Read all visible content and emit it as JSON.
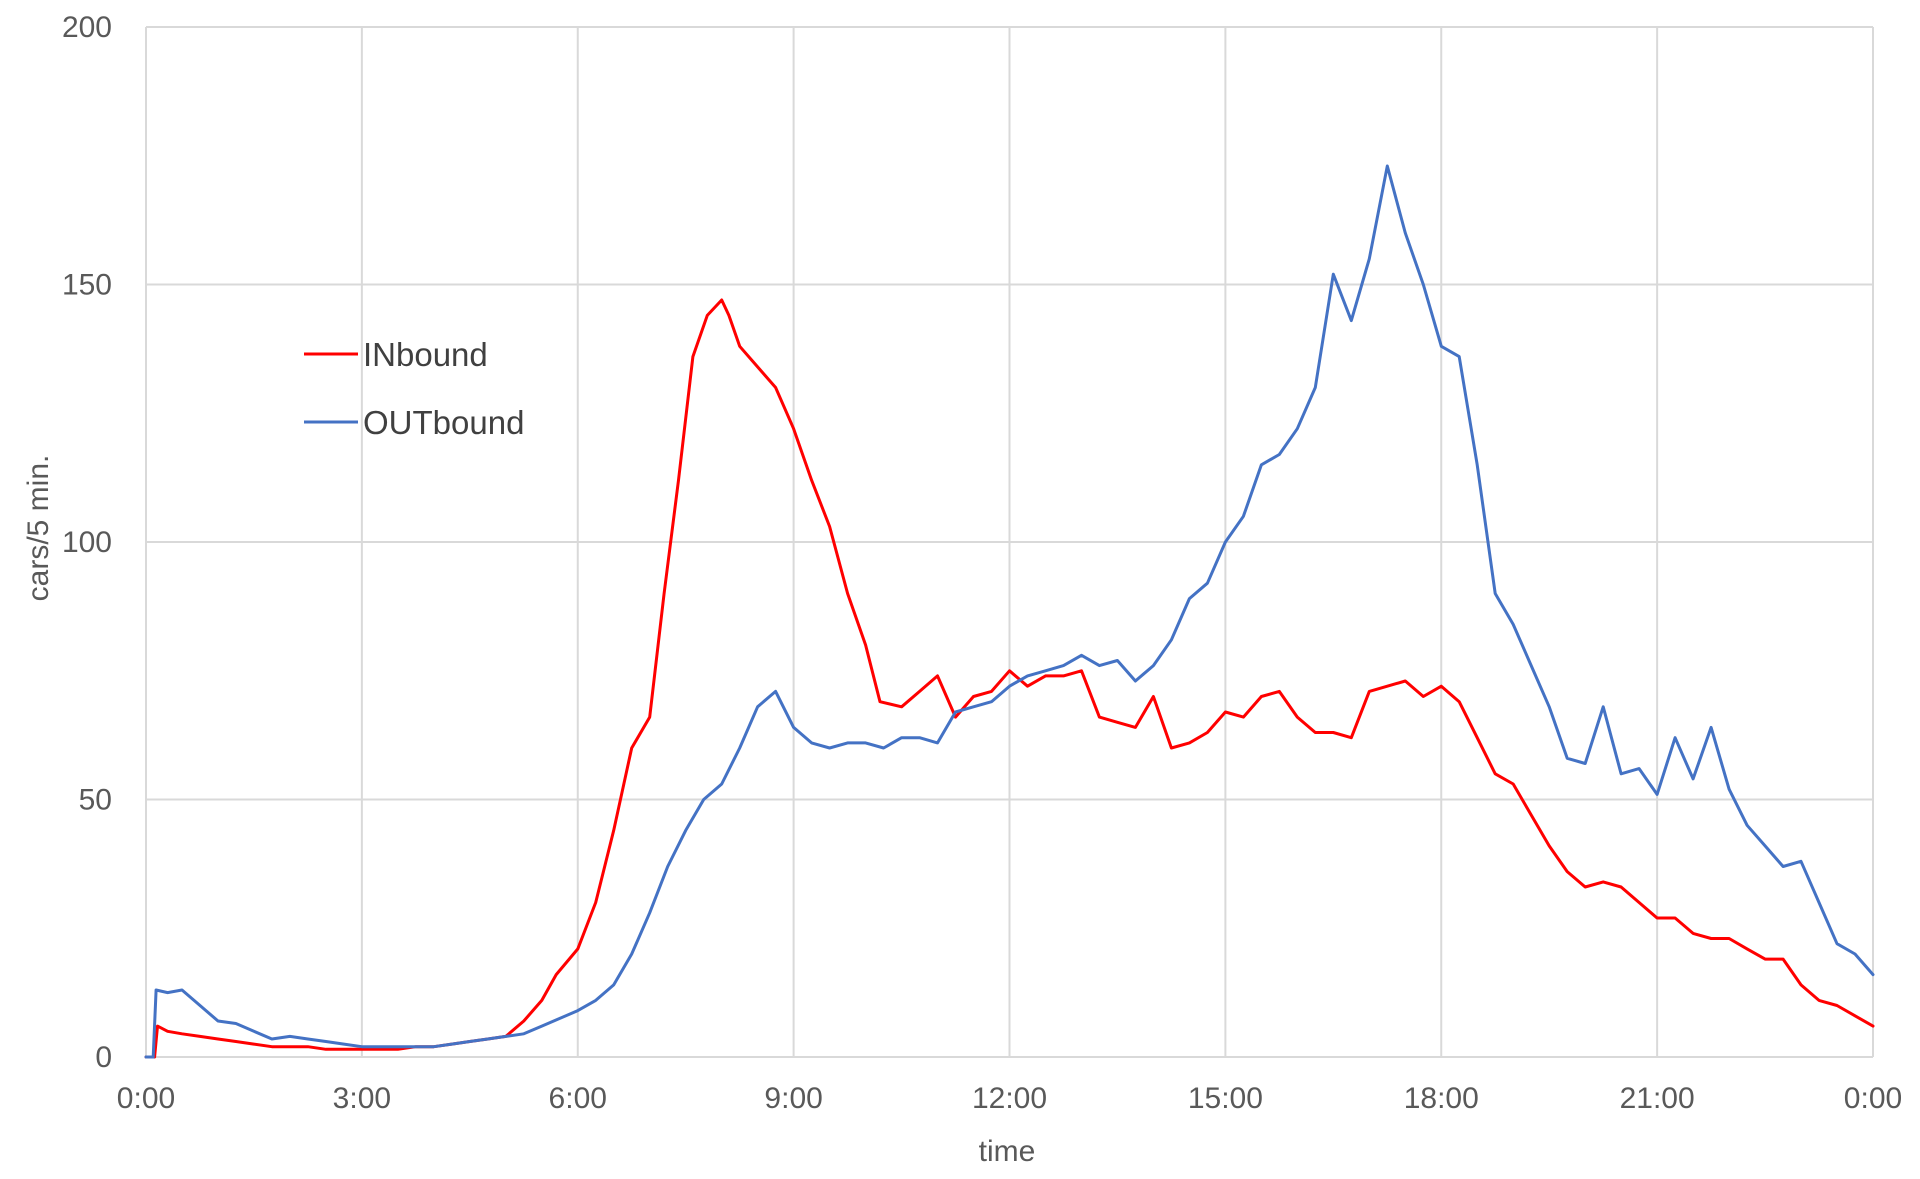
{
  "chart_data": {
    "type": "line",
    "xlabel": "time",
    "ylabel": "cars/5 min.",
    "x_ticks": [
      "0:00",
      "3:00",
      "6:00",
      "9:00",
      "12:00",
      "15:00",
      "18:00",
      "21:00",
      "0:00"
    ],
    "x_range_hours": [
      0,
      24
    ],
    "ylim": [
      0,
      200
    ],
    "y_ticks": [
      0,
      50,
      100,
      150,
      200
    ],
    "grid": true,
    "legend": "upper-left inside plot",
    "series": [
      {
        "name": "INbound",
        "color": "#ff0000",
        "points": [
          [
            0,
            0
          ],
          [
            0.12,
            0
          ],
          [
            0.16,
            6
          ],
          [
            0.3,
            5
          ],
          [
            0.5,
            4.5
          ],
          [
            0.75,
            4
          ],
          [
            1,
            3.5
          ],
          [
            1.25,
            3
          ],
          [
            1.5,
            2.5
          ],
          [
            1.75,
            2
          ],
          [
            2,
            2
          ],
          [
            2.25,
            2
          ],
          [
            2.5,
            1.5
          ],
          [
            2.75,
            1.5
          ],
          [
            3,
            1.5
          ],
          [
            3.25,
            1.5
          ],
          [
            3.5,
            1.5
          ],
          [
            3.75,
            2
          ],
          [
            4,
            2
          ],
          [
            4.25,
            2.5
          ],
          [
            4.5,
            3
          ],
          [
            4.75,
            3.5
          ],
          [
            5,
            4
          ],
          [
            5.25,
            7
          ],
          [
            5.5,
            11
          ],
          [
            5.7,
            16
          ],
          [
            6,
            21
          ],
          [
            6.25,
            30
          ],
          [
            6.5,
            44
          ],
          [
            6.75,
            60
          ],
          [
            7,
            66
          ],
          [
            7.2,
            90
          ],
          [
            7.4,
            112
          ],
          [
            7.6,
            136
          ],
          [
            7.8,
            144
          ],
          [
            8,
            147
          ],
          [
            8.1,
            144
          ],
          [
            8.25,
            138
          ],
          [
            8.5,
            134
          ],
          [
            8.75,
            130
          ],
          [
            9,
            122
          ],
          [
            9.25,
            112
          ],
          [
            9.5,
            103
          ],
          [
            9.75,
            90
          ],
          [
            10,
            80
          ],
          [
            10.2,
            69
          ],
          [
            10.5,
            68
          ],
          [
            10.75,
            71
          ],
          [
            11,
            74
          ],
          [
            11.25,
            66
          ],
          [
            11.5,
            70
          ],
          [
            11.75,
            71
          ],
          [
            12,
            75
          ],
          [
            12.25,
            72
          ],
          [
            12.5,
            74
          ],
          [
            12.75,
            74
          ],
          [
            13,
            75
          ],
          [
            13.25,
            66
          ],
          [
            13.5,
            65
          ],
          [
            13.75,
            64
          ],
          [
            14,
            70
          ],
          [
            14.25,
            60
          ],
          [
            14.5,
            61
          ],
          [
            14.75,
            63
          ],
          [
            15,
            67
          ],
          [
            15.25,
            66
          ],
          [
            15.5,
            70
          ],
          [
            15.75,
            71
          ],
          [
            16,
            66
          ],
          [
            16.25,
            63
          ],
          [
            16.5,
            63
          ],
          [
            16.75,
            62
          ],
          [
            17,
            71
          ],
          [
            17.25,
            72
          ],
          [
            17.5,
            73
          ],
          [
            17.75,
            70
          ],
          [
            18,
            72
          ],
          [
            18.25,
            69
          ],
          [
            18.5,
            62
          ],
          [
            18.75,
            55
          ],
          [
            19,
            53
          ],
          [
            19.25,
            47
          ],
          [
            19.5,
            41
          ],
          [
            19.75,
            36
          ],
          [
            20,
            33
          ],
          [
            20.25,
            34
          ],
          [
            20.5,
            33
          ],
          [
            20.75,
            30
          ],
          [
            21,
            27
          ],
          [
            21.25,
            27
          ],
          [
            21.5,
            24
          ],
          [
            21.75,
            23
          ],
          [
            22,
            23
          ],
          [
            22.25,
            21
          ],
          [
            22.5,
            19
          ],
          [
            22.75,
            19
          ],
          [
            23,
            14
          ],
          [
            23.25,
            11
          ],
          [
            23.5,
            10
          ],
          [
            23.75,
            8
          ],
          [
            24,
            6
          ]
        ]
      },
      {
        "name": "OUTbound",
        "color": "#4472c4",
        "points": [
          [
            0,
            0
          ],
          [
            0.1,
            0
          ],
          [
            0.14,
            13
          ],
          [
            0.3,
            12.5
          ],
          [
            0.5,
            13
          ],
          [
            0.75,
            10
          ],
          [
            1,
            7
          ],
          [
            1.25,
            6.5
          ],
          [
            1.5,
            5
          ],
          [
            1.75,
            3.5
          ],
          [
            2,
            4
          ],
          [
            2.25,
            3.5
          ],
          [
            2.5,
            3
          ],
          [
            2.75,
            2.5
          ],
          [
            3,
            2
          ],
          [
            3.25,
            2
          ],
          [
            3.5,
            2
          ],
          [
            3.75,
            2
          ],
          [
            4,
            2
          ],
          [
            4.25,
            2.5
          ],
          [
            4.5,
            3
          ],
          [
            4.75,
            3.5
          ],
          [
            5,
            4
          ],
          [
            5.25,
            4.5
          ],
          [
            5.5,
            6
          ],
          [
            5.75,
            7.5
          ],
          [
            6,
            9
          ],
          [
            6.25,
            11
          ],
          [
            6.5,
            14
          ],
          [
            6.75,
            20
          ],
          [
            7,
            28
          ],
          [
            7.25,
            37
          ],
          [
            7.5,
            44
          ],
          [
            7.75,
            50
          ],
          [
            8,
            53
          ],
          [
            8.25,
            60
          ],
          [
            8.5,
            68
          ],
          [
            8.75,
            71
          ],
          [
            9,
            64
          ],
          [
            9.25,
            61
          ],
          [
            9.5,
            60
          ],
          [
            9.75,
            61
          ],
          [
            10,
            61
          ],
          [
            10.25,
            60
          ],
          [
            10.5,
            62
          ],
          [
            10.75,
            62
          ],
          [
            11,
            61
          ],
          [
            11.25,
            67
          ],
          [
            11.5,
            68
          ],
          [
            11.75,
            69
          ],
          [
            12,
            72
          ],
          [
            12.25,
            74
          ],
          [
            12.5,
            75
          ],
          [
            12.75,
            76
          ],
          [
            13,
            78
          ],
          [
            13.25,
            76
          ],
          [
            13.5,
            77
          ],
          [
            13.75,
            73
          ],
          [
            14,
            76
          ],
          [
            14.25,
            81
          ],
          [
            14.5,
            89
          ],
          [
            14.75,
            92
          ],
          [
            15,
            100
          ],
          [
            15.25,
            105
          ],
          [
            15.5,
            115
          ],
          [
            15.75,
            117
          ],
          [
            16,
            122
          ],
          [
            16.25,
            130
          ],
          [
            16.5,
            152
          ],
          [
            16.75,
            143
          ],
          [
            17,
            155
          ],
          [
            17.25,
            173
          ],
          [
            17.5,
            160
          ],
          [
            17.75,
            150
          ],
          [
            18,
            138
          ],
          [
            18.25,
            136
          ],
          [
            18.5,
            115
          ],
          [
            18.75,
            90
          ],
          [
            19,
            84
          ],
          [
            19.25,
            76
          ],
          [
            19.5,
            68
          ],
          [
            19.75,
            58
          ],
          [
            20,
            57
          ],
          [
            20.25,
            68
          ],
          [
            20.5,
            55
          ],
          [
            20.75,
            56
          ],
          [
            21,
            51
          ],
          [
            21.25,
            62
          ],
          [
            21.5,
            54
          ],
          [
            21.75,
            64
          ],
          [
            22,
            52
          ],
          [
            22.25,
            45
          ],
          [
            22.5,
            41
          ],
          [
            22.75,
            37
          ],
          [
            23,
            38
          ],
          [
            23.25,
            30
          ],
          [
            23.5,
            22
          ],
          [
            23.75,
            20
          ],
          [
            24,
            16
          ]
        ]
      }
    ]
  }
}
